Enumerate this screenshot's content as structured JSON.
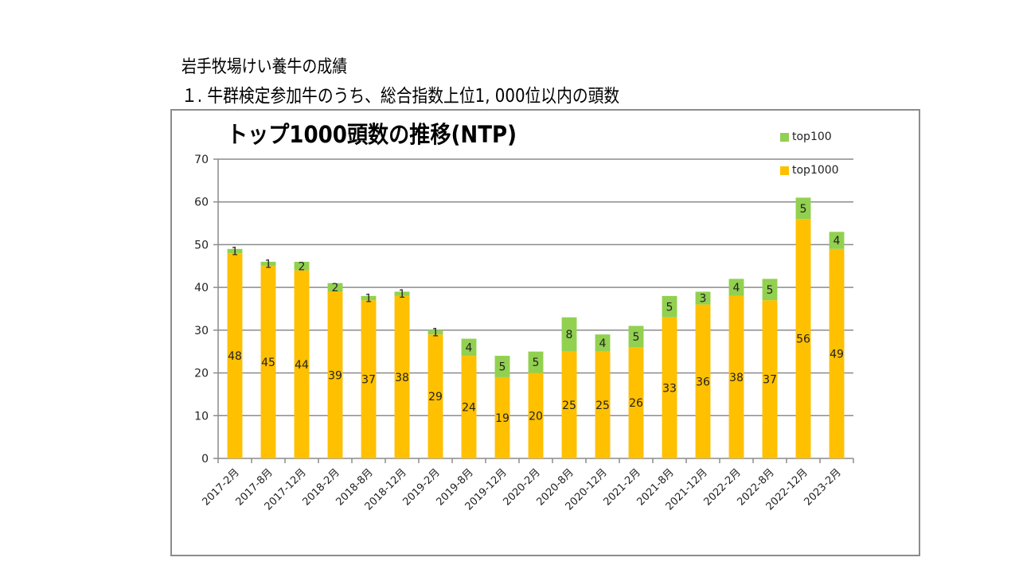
{
  "slide": {
    "title_line1": "岩手牧場けい養牛の成績",
    "title_line2": "１. 牛群検定参加牛のうち、総合指数上位1, 000位以内の頭数"
  },
  "colors": {
    "top1000": "#FFC000",
    "top100": "#92D050",
    "grid": "#8c8c8c"
  },
  "chart_data": {
    "type": "bar",
    "stacked": true,
    "title": "トップ1000頭数の推移(NTP)",
    "xlabel": "",
    "ylabel": "",
    "ylim": [
      0,
      70
    ],
    "yticks": [
      0,
      10,
      20,
      30,
      40,
      50,
      60,
      70
    ],
    "grid": true,
    "legend_position": "top-right",
    "categories": [
      "2017-2月",
      "2017-8月",
      "2017-12月",
      "2018-2月",
      "2018-8月",
      "2018-12月",
      "2019-2月",
      "2019-8月",
      "2019-12月",
      "2020-2月",
      "2020-8月",
      "2020-12月",
      "2021-2月",
      "2021-8月",
      "2021-12月",
      "2022-2月",
      "2022-8月",
      "2022-12月",
      "2023-2月"
    ],
    "series": [
      {
        "name": "top1000",
        "values": [
          48,
          45,
          44,
          39,
          37,
          38,
          29,
          24,
          19,
          20,
          25,
          25,
          26,
          33,
          36,
          38,
          37,
          56,
          49
        ]
      },
      {
        "name": "top100",
        "values": [
          1,
          1,
          2,
          2,
          1,
          1,
          1,
          4,
          5,
          5,
          8,
          4,
          5,
          5,
          3,
          4,
          5,
          5,
          4
        ]
      }
    ],
    "legend": [
      "top100",
      "top1000"
    ]
  }
}
